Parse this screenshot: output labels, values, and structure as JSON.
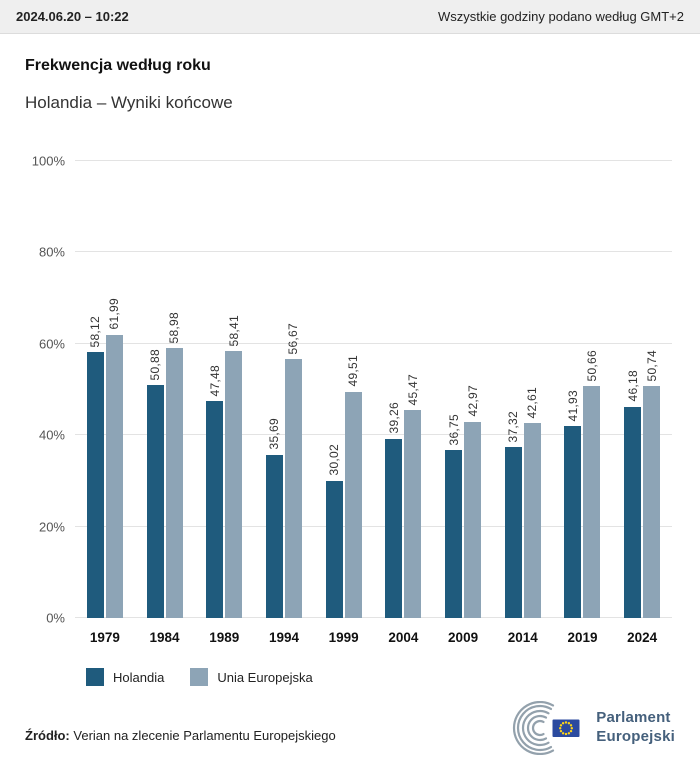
{
  "header": {
    "datetime": "2024.06.20 – 10:22",
    "timezone_note": "Wszystkie godziny podano według GMT+2"
  },
  "chart_data": {
    "type": "bar",
    "title": "Frekwencja według roku",
    "subtitle": "Holandia – Wyniki końcowe",
    "categories": [
      "1979",
      "1984",
      "1989",
      "1994",
      "1999",
      "2004",
      "2009",
      "2014",
      "2019",
      "2024"
    ],
    "series": [
      {
        "name": "Holandia",
        "color": "#1f5b7d",
        "values": [
          58.12,
          50.88,
          47.48,
          35.69,
          30.02,
          39.26,
          36.75,
          37.32,
          41.93,
          46.18
        ]
      },
      {
        "name": "Unia Europejska",
        "color": "#8da4b6",
        "values": [
          61.99,
          58.98,
          58.41,
          56.67,
          49.51,
          45.47,
          42.97,
          42.61,
          50.66,
          50.74
        ]
      }
    ],
    "ylim": [
      0,
      100
    ],
    "yticks": [
      0,
      20,
      40,
      60,
      80,
      100
    ],
    "ytick_format": "{v}%",
    "value_label_decimal_separator": ",",
    "grid": true,
    "legend_position": "bottom-left"
  },
  "footer": {
    "source_label": "Źródło:",
    "source_text": "Verian na zlecenie Parlamentu Europejskiego"
  },
  "logo": {
    "line1": "Parlament",
    "line2": "Europejski"
  },
  "colors": {
    "topbar-bg": "#efefef",
    "gridline": "#e3e3e3",
    "logo-arc": "#93a1ac",
    "flag-blue": "#2b4a9f",
    "flag-star": "#ffd617",
    "logo-text": "#45607c"
  }
}
